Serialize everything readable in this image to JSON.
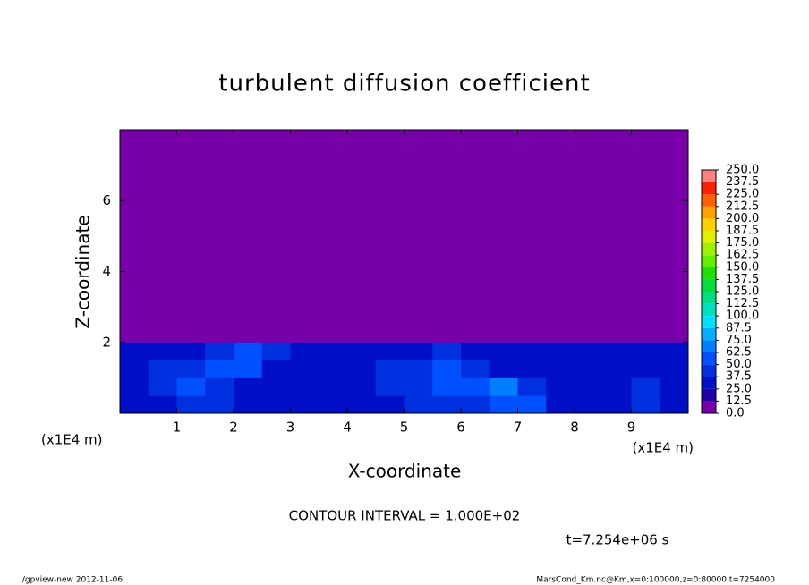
{
  "chart_data": {
    "type": "heatmap",
    "title": "turbulent diffusion coefficient",
    "x_label": "X-coordinate",
    "y_label": "Z-coordinate",
    "x_unit": "(x1E4 m)",
    "y_unit": "(x1E4 m)",
    "xlim": [
      0,
      10
    ],
    "ylim": [
      0,
      8
    ],
    "xticks": [
      1,
      2,
      3,
      4,
      5,
      6,
      7,
      8,
      9
    ],
    "yticks": [
      2,
      4,
      6
    ],
    "x_edges": [
      0,
      0.5,
      1,
      1.5,
      2,
      2.5,
      3,
      3.5,
      4,
      4.5,
      5,
      5.5,
      6,
      6.5,
      7,
      7.5,
      8,
      8.5,
      9,
      9.5,
      10
    ],
    "y_edges": [
      0,
      0.5,
      1,
      1.5,
      2,
      8
    ],
    "values": [
      [
        30,
        35,
        45,
        40,
        30,
        25,
        25,
        30,
        30,
        35,
        40,
        45,
        45,
        55,
        50,
        30,
        30,
        30,
        45,
        35
      ],
      [
        35,
        40,
        55,
        45,
        35,
        30,
        30,
        35,
        35,
        40,
        40,
        50,
        60,
        65,
        40,
        30,
        30,
        30,
        40,
        35
      ],
      [
        30,
        40,
        45,
        55,
        50,
        35,
        30,
        30,
        35,
        40,
        45,
        55,
        45,
        35,
        30,
        30,
        30,
        35,
        30,
        30
      ],
      [
        25,
        30,
        30,
        45,
        60,
        40,
        30,
        25,
        25,
        25,
        30,
        40,
        35,
        30,
        25,
        25,
        25,
        30,
        25,
        25
      ],
      [
        0,
        0,
        0,
        0,
        0,
        0,
        0,
        0,
        0,
        0,
        0,
        0,
        0,
        0,
        0,
        0,
        0,
        0,
        0,
        0
      ]
    ],
    "levels": [
      {
        "value": 0,
        "label": "0.0"
      },
      {
        "value": 12.5,
        "label": "12.5"
      },
      {
        "value": 25,
        "label": "25.0"
      },
      {
        "value": 37.5,
        "label": "37.5"
      },
      {
        "value": 50,
        "label": "50.0"
      },
      {
        "value": 62.5,
        "label": "62.5"
      },
      {
        "value": 75,
        "label": "75.0"
      },
      {
        "value": 87.5,
        "label": "87.5"
      },
      {
        "value": 100,
        "label": "100.0"
      },
      {
        "value": 112.5,
        "label": "112.5"
      },
      {
        "value": 125,
        "label": "125.0"
      },
      {
        "value": 137.5,
        "label": "137.5"
      },
      {
        "value": 150,
        "label": "150.0"
      },
      {
        "value": 162.5,
        "label": "162.5"
      },
      {
        "value": 175,
        "label": "175.0"
      },
      {
        "value": 187.5,
        "label": "187.5"
      },
      {
        "value": 200,
        "label": "200.0"
      },
      {
        "value": 212.5,
        "label": "212.5"
      },
      {
        "value": 225,
        "label": "225.0"
      },
      {
        "value": 237.5,
        "label": "237.5"
      },
      {
        "value": 250,
        "label": "250.0"
      }
    ],
    "colors": [
      "#7800a8",
      "#2000a8",
      "#0010c8",
      "#0030e0",
      "#0050ff",
      "#0080ff",
      "#00b0ff",
      "#00e0ff",
      "#00e0c0",
      "#00e080",
      "#00e040",
      "#20e000",
      "#60f000",
      "#a0f000",
      "#e0f000",
      "#ffd000",
      "#ffa000",
      "#ff6000",
      "#ff2000",
      "#ff8080"
    ],
    "annotations": [
      "CONTOUR INTERVAL = 1.000E+02",
      "t=7.254e+06 s"
    ],
    "footer_left": "./gpview-new  2012-11-06",
    "footer_right": "MarsCond_Km.nc@Km,x=0:100000,z=0:80000,t=7254000"
  }
}
